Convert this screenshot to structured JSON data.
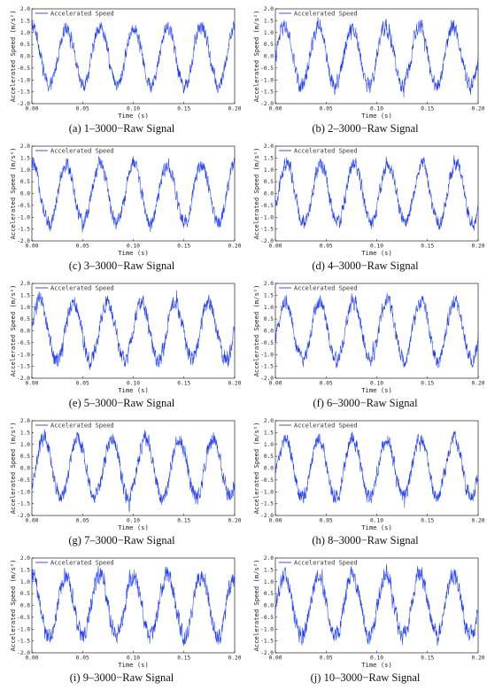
{
  "chart_data": [
    {
      "type": "line",
      "caption": "(a) 1–3000−Raw Signal",
      "legend": "Accelerated Speed",
      "xlabel": "Time (s)",
      "ylabel": "Accelerated Speed (m/s²)",
      "xlim": [
        0.0,
        0.2
      ],
      "ylim": [
        -2.0,
        2.0
      ],
      "xticks": [
        "0.00",
        "0.05",
        "0.10",
        "0.15",
        "0.20"
      ],
      "yticks": [
        "-2.0",
        "-1.5",
        "-1.0",
        "-0.5",
        "0.0",
        "0.5",
        "1.0",
        "1.5",
        "2.0"
      ],
      "legend_position": "top-left",
      "color": "#1f3fff",
      "signal": {
        "kind": "noisy sinusoid",
        "frequency_hz": 30,
        "amplitude": 1.25,
        "noise": 0.15,
        "phase": 1.45,
        "peak_times_s": [
          0.0283,
          0.0616,
          0.0949,
          0.1283,
          0.1616,
          0.1949
        ]
      }
    },
    {
      "type": "line",
      "caption": "(b) 2–3000−Raw Signal",
      "legend": "Accelerated Speed",
      "xlabel": "Time (s)",
      "ylabel": "Accelerated Speed (m/s²)",
      "xlim": [
        0.0,
        0.2
      ],
      "ylim": [
        -2.0,
        2.0
      ],
      "xticks": [
        "0.00",
        "0.05",
        "0.10",
        "0.15",
        "0.20"
      ],
      "yticks": [
        "-2.0",
        "-1.5",
        "-1.0",
        "-0.5",
        "0.0",
        "0.5",
        "1.0",
        "1.5",
        "2.0"
      ],
      "legend_position": "top-left",
      "color": "#1f3fff",
      "signal": {
        "kind": "noisy sinusoid",
        "frequency_hz": 30,
        "amplitude": 1.25,
        "noise": 0.17,
        "phase": -0.1,
        "peak_times_s": [
          0.017,
          0.0503,
          0.0836,
          0.117,
          0.1503,
          0.1836
        ]
      }
    },
    {
      "type": "line",
      "caption": "(c) 3–3000−Raw Signal",
      "legend": "Accelerated Speed",
      "xlabel": "Time (s)",
      "ylabel": "Accelerated Speed (m/s²)",
      "xlim": [
        0.0,
        0.2
      ],
      "ylim": [
        -2.0,
        2.0
      ],
      "xticks": [
        "0.00",
        "0.05",
        "0.10",
        "0.15",
        "0.20"
      ],
      "yticks": [
        "-2.0",
        "-1.5",
        "-1.0",
        "-0.5",
        "0.0",
        "0.5",
        "1.0",
        "1.5",
        "2.0"
      ],
      "legend_position": "top-left",
      "color": "#1f3fff",
      "signal": {
        "kind": "noisy sinusoid",
        "frequency_hz": 30,
        "amplitude": 1.25,
        "noise": 0.16,
        "phase": 1.5,
        "peak_times_s": [
          0.028,
          0.0613,
          0.0946,
          0.128,
          0.1613,
          0.1946
        ]
      }
    },
    {
      "type": "line",
      "caption": "(d) 4–3000−Raw Signal",
      "legend": "Accelerated Speed",
      "xlabel": "Time (s)",
      "ylabel": "Accelerated Speed (m/s²)",
      "xlim": [
        0.0,
        0.2
      ],
      "ylim": [
        -2.0,
        2.0
      ],
      "xticks": [
        "0.00",
        "0.05",
        "0.10",
        "0.15",
        "0.20"
      ],
      "yticks": [
        "-2.0",
        "-1.5",
        "-1.0",
        "-0.5",
        "0.0",
        "0.5",
        "1.0",
        "1.5",
        "2.0"
      ],
      "legend_position": "top-left",
      "color": "#1f3fff",
      "signal": {
        "kind": "noisy sinusoid",
        "frequency_hz": 30,
        "amplitude": 1.25,
        "noise": 0.16,
        "phase": -0.55,
        "peak_times_s": [
          0.013,
          0.0463,
          0.0796,
          0.113,
          0.1463,
          0.1796
        ]
      }
    },
    {
      "type": "line",
      "caption": "(e) 5–3000−Raw Signal",
      "legend": "Accelerated Speed",
      "xlabel": "Time (s)",
      "ylabel": "Accelerated Speed (m/s²)",
      "xlim": [
        0.0,
        0.2
      ],
      "ylim": [
        -2.0,
        2.0
      ],
      "xticks": [
        "0.00",
        "0.05",
        "0.10",
        "0.15",
        "0.20"
      ],
      "yticks": [
        "-2.0",
        "-1.5",
        "-1.0",
        "-0.5",
        "0.0",
        "0.5",
        "1.0",
        "1.5",
        "2.0"
      ],
      "legend_position": "top-left",
      "color": "#1f3fff",
      "signal": {
        "kind": "noisy sinusoid",
        "frequency_hz": 30,
        "amplitude": 1.25,
        "noise": 0.18,
        "phase": 0.1,
        "peak_times_s": [
          0.0186,
          0.052,
          0.0853,
          0.1186,
          0.152,
          0.1853
        ]
      }
    },
    {
      "type": "line",
      "caption": "(f) 6–3000−Raw Signal",
      "legend": "Accelerated Speed",
      "xlabel": "Time (s)",
      "ylabel": "Accelerated Speed (m/s²)",
      "xlim": [
        0.0,
        0.2
      ],
      "ylim": [
        -2.0,
        2.0
      ],
      "xticks": [
        "0.00",
        "0.05",
        "0.10",
        "0.15",
        "0.20"
      ],
      "yticks": [
        "-2.0",
        "-1.5",
        "-1.0",
        "-0.5",
        "0.0",
        "0.5",
        "1.0",
        "1.5",
        "2.0"
      ],
      "legend_position": "top-left",
      "color": "#1f3fff",
      "signal": {
        "kind": "noisy sinusoid",
        "frequency_hz": 30,
        "amplitude": 1.25,
        "noise": 0.16,
        "phase": -0.35,
        "peak_times_s": [
          0.015,
          0.0483,
          0.0816,
          0.115,
          0.1483,
          0.1816
        ]
      }
    },
    {
      "type": "line",
      "caption": "(g) 7–3000−Raw Signal",
      "legend": "Accelerated Speed",
      "xlabel": "Time (s)",
      "ylabel": "Accelerated Speed (m/s²)",
      "xlim": [
        0.0,
        0.2
      ],
      "ylim": [
        -2.0,
        2.0
      ],
      "xticks": [
        "0.00",
        "0.05",
        "0.10",
        "0.15",
        "0.20"
      ],
      "yticks": [
        "-2.0",
        "-1.5",
        "-1.0",
        "-0.5",
        "0.0",
        "0.5",
        "1.0",
        "1.5",
        "2.0"
      ],
      "legend_position": "top-left",
      "color": "#1f3fff",
      "signal": {
        "kind": "noisy sinusoid",
        "frequency_hz": 30,
        "amplitude": 1.25,
        "noise": 0.17,
        "phase": -0.7,
        "peak_times_s": [
          0.012,
          0.0453,
          0.0786,
          0.112,
          0.1453,
          0.1786
        ]
      }
    },
    {
      "type": "line",
      "caption": "(h) 8–3000−Raw Signal",
      "legend": "Accelerated Speed",
      "xlabel": "Time (s)",
      "ylabel": "Accelerated Speed (m/s²)",
      "xlim": [
        0.0,
        0.2
      ],
      "ylim": [
        -2.0,
        2.0
      ],
      "xticks": [
        "0.00",
        "0.05",
        "0.10",
        "0.15",
        "0.20"
      ],
      "yticks": [
        "-2.0",
        "-1.5",
        "-1.0",
        "-0.5",
        "0.0",
        "0.5",
        "1.0",
        "1.5",
        "2.0"
      ],
      "legend_position": "top-left",
      "color": "#1f3fff",
      "signal": {
        "kind": "noisy sinusoid",
        "frequency_hz": 30,
        "amplitude": 1.25,
        "noise": 0.16,
        "phase": -0.25,
        "peak_times_s": [
          0.0153,
          0.0486,
          0.082,
          0.1153,
          0.1486,
          0.182
        ]
      }
    },
    {
      "type": "line",
      "caption": "(i) 9–3000−Raw Signal",
      "legend": "Accelerated Speed",
      "xlabel": "Time (s)",
      "ylabel": "Accelerated Speed (m/s²)",
      "xlim": [
        0.0,
        0.2
      ],
      "ylim": [
        -2.0,
        2.0
      ],
      "xticks": [
        "0.00",
        "0.05",
        "0.10",
        "0.15",
        "0.20"
      ],
      "yticks": [
        "-2.0",
        "-1.5",
        "-1.0",
        "-0.5",
        "0.0",
        "0.5",
        "1.0",
        "1.5",
        "2.0"
      ],
      "legend_position": "top-left",
      "color": "#1f3fff",
      "signal": {
        "kind": "noisy sinusoid",
        "frequency_hz": 30,
        "amplitude": 1.3,
        "noise": 0.2,
        "phase": 1.55,
        "peak_times_s": [
          0.0283,
          0.0616,
          0.0949,
          0.1283,
          0.1616,
          0.1949
        ]
      }
    },
    {
      "type": "line",
      "caption": "(j) 10–3000−Raw Signal",
      "legend": "Accelerated Speed",
      "xlabel": "Time (s)",
      "ylabel": "Accelerated Speed (m/s²)",
      "xlim": [
        0.0,
        0.2
      ],
      "ylim": [
        -2.0,
        2.0
      ],
      "xticks": [
        "0.00",
        "0.05",
        "0.10",
        "0.15",
        "0.20"
      ],
      "yticks": [
        "-2.0",
        "-1.5",
        "-1.0",
        "-0.5",
        "0.0",
        "0.5",
        "1.0",
        "1.5",
        "2.0"
      ],
      "legend_position": "top-left",
      "color": "#1f3fff",
      "signal": {
        "kind": "noisy sinusoid",
        "frequency_hz": 30,
        "amplitude": 1.3,
        "noise": 0.2,
        "phase": -0.15,
        "peak_times_s": [
          0.0163,
          0.0496,
          0.083,
          0.1163,
          0.1496,
          0.183
        ]
      }
    }
  ]
}
